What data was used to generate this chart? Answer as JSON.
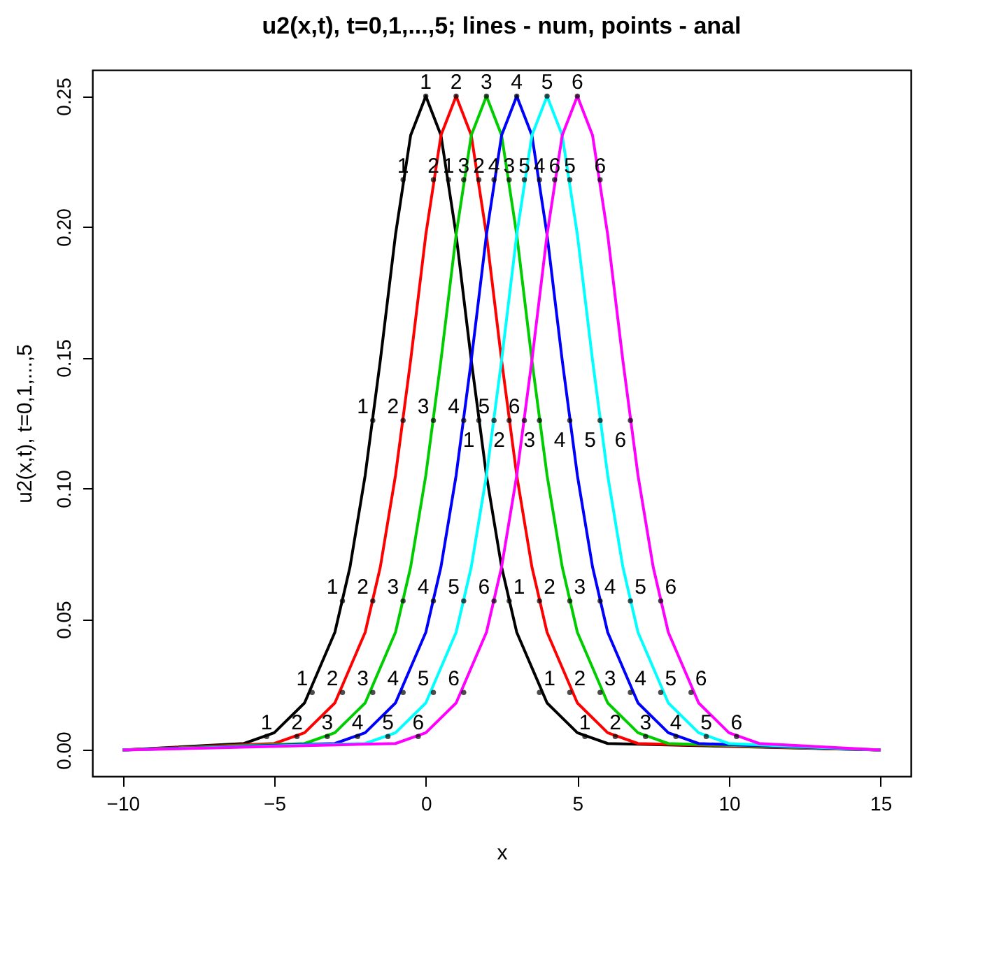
{
  "chart_data": {
    "type": "line",
    "title": "u2(x,t), t=0,1,...,5; lines - num, points - anal",
    "xlabel": "x",
    "ylabel": "u2(x,t), t=0,1,...,5",
    "xlim": [
      -11,
      16
    ],
    "xticks": [
      -10,
      -5,
      0,
      5,
      10,
      15
    ],
    "ylim": [
      -0.01,
      0.26
    ],
    "yticks": [
      {
        "value": 0,
        "label": "0.00"
      },
      0.05,
      {
        "value": 0.1,
        "label": "0.10"
      },
      0.15,
      {
        "value": 0.2,
        "label": "0.20"
      },
      0.25
    ],
    "series": [
      {
        "color": "#000000",
        "x": [
          -10,
          -6,
          -5,
          -4,
          -3,
          -2.5,
          -2,
          -1.5,
          -1,
          -0.5,
          0,
          0.5,
          1,
          1.5,
          2,
          2.5,
          3,
          4,
          5,
          6,
          15
        ],
        "values": [
          0,
          0.0025,
          0.0066,
          0.018,
          0.045,
          0.07,
          0.105,
          0.149,
          0.197,
          0.235,
          0.25,
          0.235,
          0.197,
          0.149,
          0.105,
          0.07,
          0.045,
          0.018,
          0.0066,
          0.0025,
          0
        ]
      },
      {
        "color": "#ff0000",
        "x": [
          -10,
          -5,
          -4,
          -3,
          -2,
          -1.5,
          -1,
          -0.5,
          0,
          0.5,
          1,
          1.5,
          2,
          2.5,
          3,
          3.5,
          4,
          5,
          6,
          7,
          15
        ],
        "values": [
          0,
          0.0025,
          0.0066,
          0.018,
          0.045,
          0.07,
          0.105,
          0.149,
          0.197,
          0.235,
          0.25,
          0.235,
          0.197,
          0.149,
          0.105,
          0.07,
          0.045,
          0.018,
          0.0066,
          0.0025,
          0
        ]
      },
      {
        "color": "#00cd00",
        "x": [
          -10,
          -4,
          -3,
          -2,
          -1,
          -0.5,
          0,
          0.5,
          1,
          1.5,
          2,
          2.5,
          3,
          3.5,
          4,
          4.5,
          5,
          6,
          7,
          8,
          15
        ],
        "values": [
          0,
          0.0025,
          0.0066,
          0.018,
          0.045,
          0.07,
          0.105,
          0.149,
          0.197,
          0.235,
          0.25,
          0.235,
          0.197,
          0.149,
          0.105,
          0.07,
          0.045,
          0.018,
          0.0066,
          0.0025,
          0
        ]
      },
      {
        "color": "#0000ff",
        "x": [
          -10,
          -3,
          -2,
          -1,
          0,
          0.5,
          1,
          1.5,
          2,
          2.5,
          3,
          3.5,
          4,
          4.5,
          5,
          5.5,
          6,
          7,
          8,
          9,
          15
        ],
        "values": [
          0,
          0.0025,
          0.0066,
          0.018,
          0.045,
          0.07,
          0.105,
          0.149,
          0.197,
          0.235,
          0.25,
          0.235,
          0.197,
          0.149,
          0.105,
          0.07,
          0.045,
          0.018,
          0.0066,
          0.0025,
          0
        ]
      },
      {
        "color": "#00ffff",
        "x": [
          -10,
          -2,
          -1,
          0,
          1,
          1.5,
          2,
          2.5,
          3,
          3.5,
          4,
          4.5,
          5,
          5.5,
          6,
          6.5,
          7,
          8,
          9,
          10,
          15
        ],
        "values": [
          0,
          0.0025,
          0.0066,
          0.018,
          0.045,
          0.07,
          0.105,
          0.149,
          0.197,
          0.235,
          0.25,
          0.235,
          0.197,
          0.149,
          0.105,
          0.07,
          0.045,
          0.018,
          0.0066,
          0.0025,
          0
        ]
      },
      {
        "color": "#ff00ff",
        "x": [
          -10,
          -1,
          0,
          1,
          2,
          2.5,
          3,
          3.5,
          4,
          4.5,
          5,
          5.5,
          6,
          6.5,
          7,
          7.5,
          8,
          9,
          10,
          11,
          15
        ],
        "values": [
          0,
          0.0025,
          0.0066,
          0.018,
          0.045,
          0.07,
          0.105,
          0.149,
          0.197,
          0.235,
          0.25,
          0.235,
          0.197,
          0.149,
          0.105,
          0.07,
          0.045,
          0.018,
          0.0066,
          0.0025,
          0
        ]
      },
      {
        "type": "scatter",
        "name": "1",
        "color": "#000000",
        "x": [
          -5.25,
          -3.75,
          -2.75,
          -1.75,
          -0.75,
          0,
          0.75,
          1.75,
          2.75,
          3.75,
          5.25
        ],
        "values": [
          0.0052,
          0.022,
          0.057,
          0.126,
          0.218,
          0.25,
          0.218,
          0.126,
          0.057,
          0.022,
          0.0052
        ]
      },
      {
        "type": "scatter",
        "name": "2",
        "color": "#000000",
        "x": [
          -4.25,
          -2.75,
          -1.75,
          -0.75,
          0.25,
          1,
          1.75,
          2.75,
          3.75,
          4.75,
          6.25
        ],
        "values": [
          0.0052,
          0.022,
          0.057,
          0.126,
          0.218,
          0.25,
          0.218,
          0.126,
          0.057,
          0.022,
          0.0052
        ]
      },
      {
        "type": "scatter",
        "name": "3",
        "color": "#000000",
        "x": [
          -3.25,
          -1.75,
          -0.75,
          0.25,
          1.25,
          2,
          2.75,
          3.75,
          4.75,
          5.75,
          7.25
        ],
        "values": [
          0.0052,
          0.022,
          0.057,
          0.126,
          0.218,
          0.25,
          0.218,
          0.126,
          0.057,
          0.022,
          0.0052
        ]
      },
      {
        "type": "scatter",
        "name": "4",
        "color": "#000000",
        "x": [
          -2.25,
          -0.75,
          0.25,
          1.25,
          2.25,
          3,
          3.75,
          4.75,
          5.75,
          6.75,
          8.25
        ],
        "values": [
          0.0052,
          0.022,
          0.057,
          0.126,
          0.218,
          0.25,
          0.218,
          0.126,
          0.057,
          0.022,
          0.0052
        ]
      },
      {
        "type": "scatter",
        "name": "5",
        "color": "#000000",
        "x": [
          -1.25,
          0.25,
          1.25,
          2.25,
          3.25,
          4,
          4.75,
          5.75,
          6.75,
          7.75,
          9.25
        ],
        "values": [
          0.0052,
          0.022,
          0.057,
          0.126,
          0.218,
          0.25,
          0.218,
          0.126,
          0.057,
          0.022,
          0.0052
        ]
      },
      {
        "type": "scatter",
        "name": "6",
        "color": "#000000",
        "x": [
          -0.25,
          1.25,
          2.25,
          3.25,
          4.25,
          5,
          5.75,
          6.75,
          7.75,
          8.75,
          10.25
        ],
        "values": [
          0.0052,
          0.022,
          0.057,
          0.126,
          0.218,
          0.25,
          0.218,
          0.126,
          0.057,
          0.022,
          0.0052
        ]
      }
    ]
  }
}
